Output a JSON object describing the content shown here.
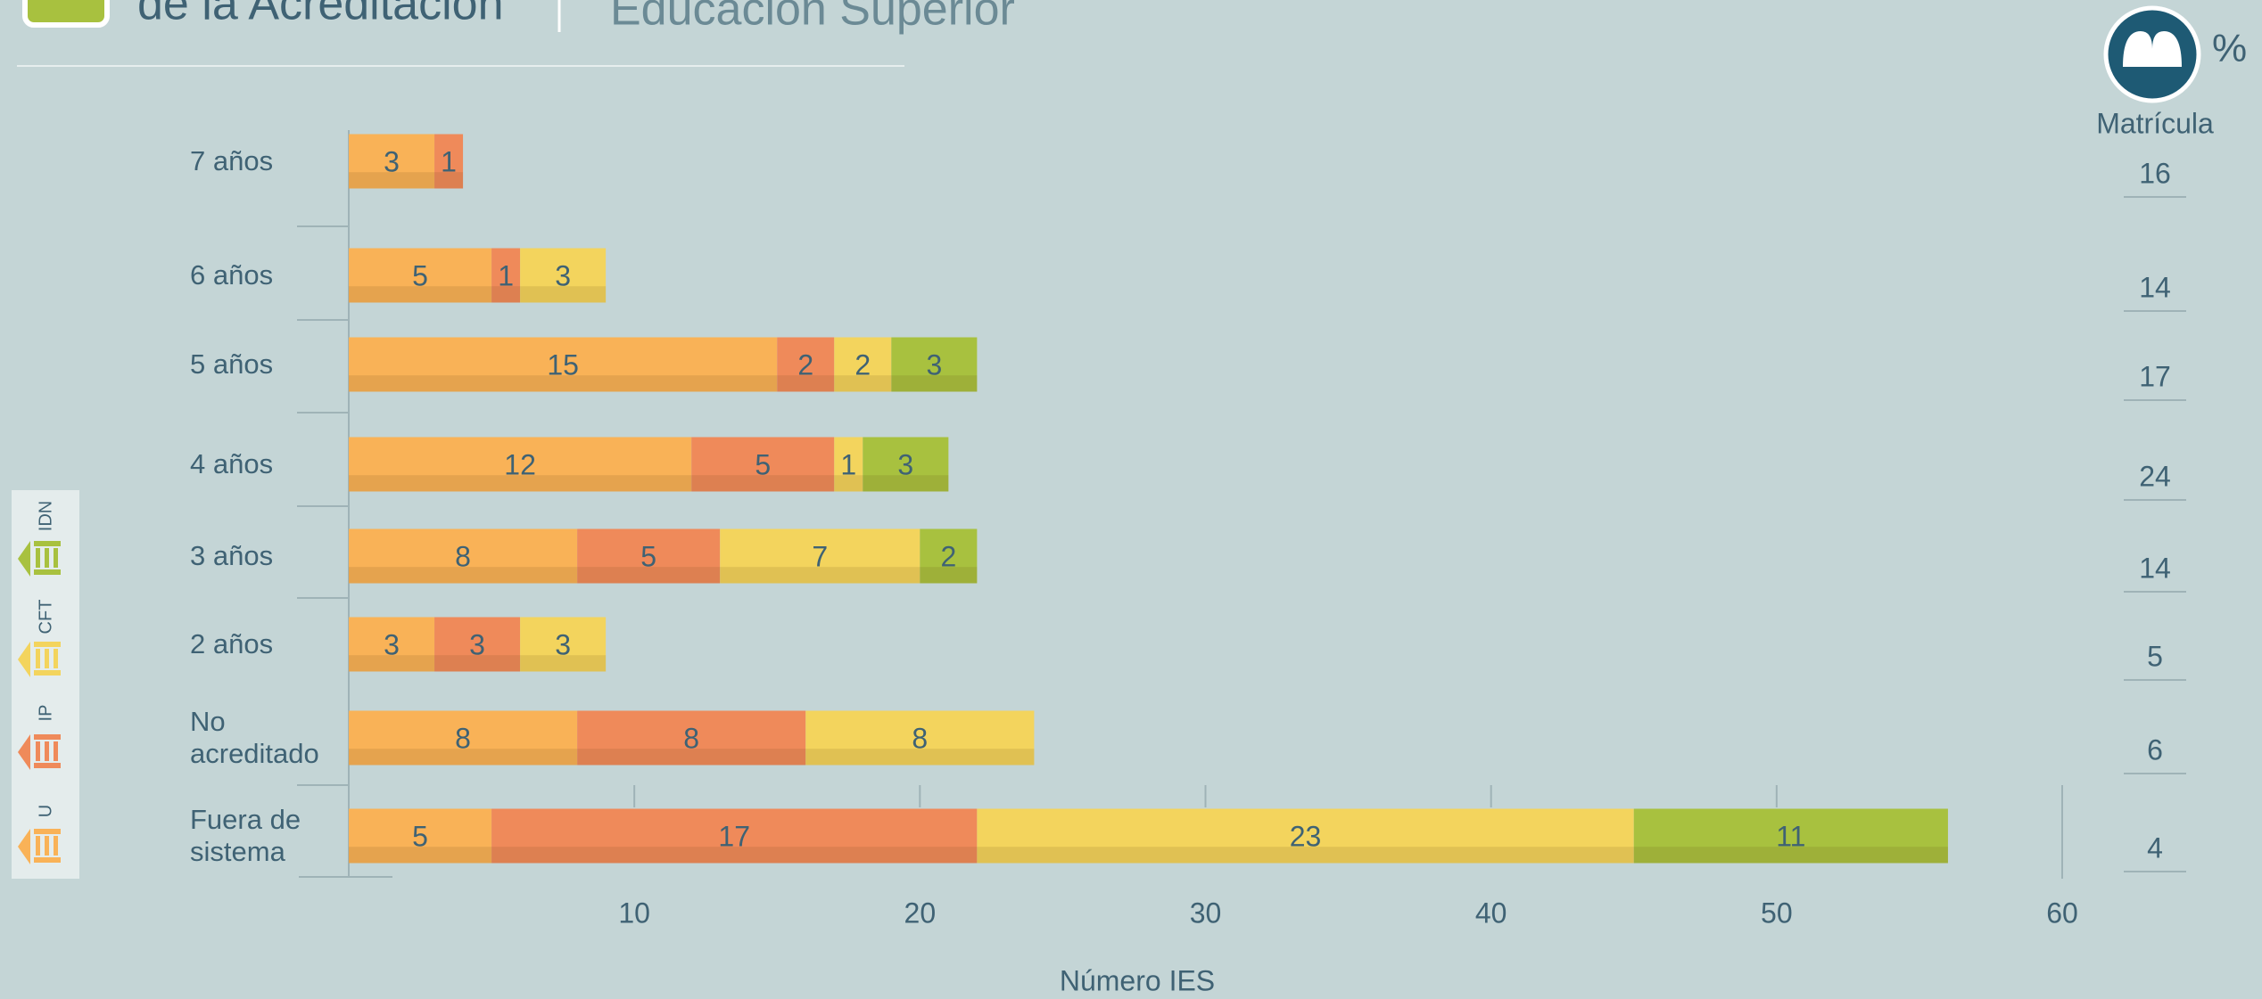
{
  "chart_data": {
    "type": "bar",
    "stacked": true,
    "orientation": "horizontal",
    "title": "de la Acreditación",
    "subtitle": "Educación Superior",
    "xlabel": "Número IES",
    "categories": [
      "7 años",
      "6 años",
      "5 años",
      "4 años",
      "3 años",
      "2 años",
      "No acreditado",
      "Fuera de sistema"
    ],
    "series": [
      {
        "name": "U",
        "color": "#f9b257",
        "values": [
          3,
          5,
          15,
          12,
          8,
          3,
          8,
          5
        ]
      },
      {
        "name": "IP",
        "color": "#ef8a5a",
        "values": [
          1,
          1,
          2,
          5,
          5,
          3,
          8,
          17
        ]
      },
      {
        "name": "CFT",
        "color": "#f3d45d",
        "values": [
          null,
          3,
          2,
          1,
          7,
          3,
          8,
          23
        ]
      },
      {
        "name": "IDN",
        "color": "#a8c13f",
        "values": [
          null,
          null,
          3,
          3,
          2,
          null,
          null,
          11
        ]
      }
    ],
    "xlim": [
      0,
      60
    ],
    "xticks": [
      10,
      20,
      30,
      40,
      50,
      60
    ],
    "side_column": {
      "title": "Matrícula",
      "unit": "%",
      "values": [
        16,
        14,
        17,
        24,
        14,
        5,
        6,
        4
      ]
    }
  }
}
